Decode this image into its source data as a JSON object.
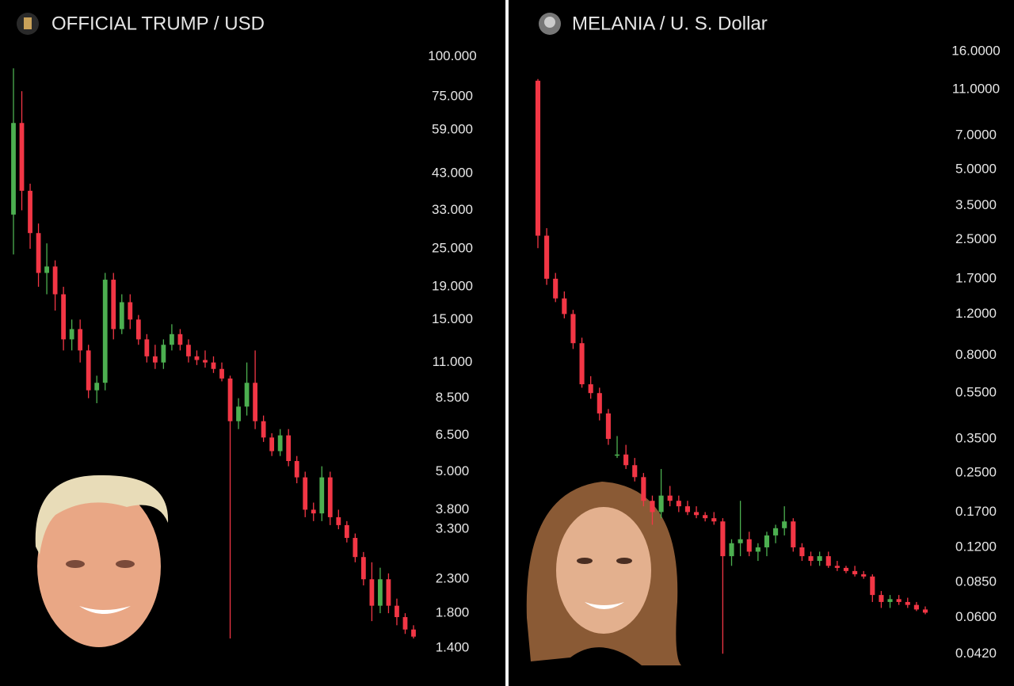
{
  "chart_data": [
    {
      "type": "candlestick",
      "title": "OFFICIAL TRUMP / USD",
      "log_scale": true,
      "grid": false,
      "up_color": "#4caf50",
      "down_color": "#f23645",
      "ylim": [
        1.2,
        110
      ],
      "yticks": [
        {
          "value": 100,
          "label": "100.000"
        },
        {
          "value": 75,
          "label": "75.000"
        },
        {
          "value": 59,
          "label": "59.000"
        },
        {
          "value": 43,
          "label": "43.000"
        },
        {
          "value": 33,
          "label": "33.000"
        },
        {
          "value": 25,
          "label": "25.000"
        },
        {
          "value": 19,
          "label": "19.000"
        },
        {
          "value": 15,
          "label": "15.000"
        },
        {
          "value": 11,
          "label": "11.000"
        },
        {
          "value": 8.5,
          "label": "8.500"
        },
        {
          "value": 6.5,
          "label": "6.500"
        },
        {
          "value": 5,
          "label": "5.000"
        },
        {
          "value": 3.8,
          "label": "3.800"
        },
        {
          "value": 3.3,
          "label": "3.300"
        },
        {
          "value": 2.3,
          "label": "2.300"
        },
        {
          "value": 1.8,
          "label": "1.800"
        },
        {
          "value": 1.4,
          "label": "1.400"
        }
      ],
      "open": [
        32,
        62,
        38,
        28,
        21,
        22,
        18,
        13,
        14,
        12,
        9,
        9.5,
        20,
        14,
        17,
        15,
        13,
        11.5,
        11,
        12.5,
        13.5,
        12.5,
        11.5,
        11.2,
        11,
        10.5,
        9.8,
        7.2,
        8,
        9.5,
        7.2,
        6.4,
        5.8,
        6.5,
        5.4,
        4.8,
        3.8,
        3.7,
        4.8,
        3.6,
        3.4,
        3.1,
        2.7,
        2.3,
        1.9,
        2.3,
        1.9,
        1.75,
        1.6
      ],
      "high": [
        92,
        78,
        40,
        30,
        26,
        23,
        19,
        15,
        15,
        12.5,
        10,
        21,
        21,
        18,
        18,
        15.5,
        13.5,
        12.5,
        13,
        14.5,
        14,
        13,
        12,
        12,
        11.5,
        11,
        10,
        8.5,
        11,
        12,
        7.5,
        6.6,
        6.8,
        6.8,
        5.6,
        5,
        4,
        5.2,
        5,
        3.8,
        3.5,
        3.2,
        2.8,
        2.6,
        2.5,
        2.4,
        2,
        1.8,
        1.65
      ],
      "low": [
        24,
        33,
        25,
        19,
        18,
        16,
        12,
        12,
        11,
        8.5,
        8.2,
        9,
        13,
        13.5,
        14,
        12.5,
        11,
        10.5,
        10.5,
        12,
        12,
        11,
        10.8,
        10.6,
        10.2,
        9.6,
        1.5,
        6.8,
        7.5,
        6.8,
        6.2,
        5.6,
        5.6,
        5.2,
        4.6,
        3.6,
        3.5,
        3.5,
        3.4,
        3.3,
        3,
        2.6,
        2.2,
        1.7,
        1.8,
        1.8,
        1.65,
        1.55,
        1.5
      ],
      "close": [
        62,
        38,
        28,
        21,
        22,
        18,
        13,
        14,
        12,
        9,
        9.5,
        20,
        14,
        17,
        15,
        13,
        11.5,
        11,
        12.5,
        13.5,
        12.5,
        11.5,
        11.2,
        11,
        10.5,
        9.8,
        7.2,
        8,
        9.5,
        7.2,
        6.4,
        5.8,
        6.5,
        5.4,
        4.8,
        3.8,
        3.7,
        4.8,
        3.6,
        3.4,
        3.1,
        2.7,
        2.3,
        1.9,
        2.3,
        1.9,
        1.75,
        1.6,
        1.52
      ]
    },
    {
      "type": "candlestick",
      "title": "MELANIA / U. S. Dollar",
      "log_scale": true,
      "grid": false,
      "up_color": "#4caf50",
      "down_color": "#f23645",
      "ylim": [
        0.036,
        18
      ],
      "yticks": [
        {
          "value": 16,
          "label": "16.0000"
        },
        {
          "value": 11,
          "label": "11.0000"
        },
        {
          "value": 7,
          "label": "7.0000"
        },
        {
          "value": 5,
          "label": "5.0000"
        },
        {
          "value": 3.5,
          "label": "3.5000"
        },
        {
          "value": 2.5,
          "label": "2.5000"
        },
        {
          "value": 1.7,
          "label": "1.7000"
        },
        {
          "value": 1.2,
          "label": "1.2000"
        },
        {
          "value": 0.8,
          "label": "0.8000"
        },
        {
          "value": 0.55,
          "label": "0.5500"
        },
        {
          "value": 0.35,
          "label": "0.3500"
        },
        {
          "value": 0.25,
          "label": "0.2500"
        },
        {
          "value": 0.17,
          "label": "0.1700"
        },
        {
          "value": 0.12,
          "label": "0.1200"
        },
        {
          "value": 0.085,
          "label": "0.0850"
        },
        {
          "value": 0.06,
          "label": "0.0600"
        },
        {
          "value": 0.042,
          "label": "0.0420"
        }
      ],
      "open": [
        12,
        2.6,
        1.7,
        1.4,
        1.2,
        0.9,
        0.6,
        0.55,
        0.45,
        0.3,
        0.3,
        0.27,
        0.24,
        0.19,
        0.17,
        0.2,
        0.19,
        0.18,
        0.17,
        0.165,
        0.16,
        0.155,
        0.11,
        0.125,
        0.13,
        0.115,
        0.12,
        0.135,
        0.145,
        0.155,
        0.12,
        0.11,
        0.105,
        0.11,
        0.1,
        0.098,
        0.095,
        0.092,
        0.09,
        0.075,
        0.07,
        0.072,
        0.07,
        0.068,
        0.065
      ],
      "high": [
        12.2,
        2.8,
        1.8,
        1.5,
        1.25,
        0.95,
        0.65,
        0.58,
        0.47,
        0.36,
        0.33,
        0.29,
        0.25,
        0.2,
        0.26,
        0.22,
        0.2,
        0.19,
        0.18,
        0.17,
        0.17,
        0.16,
        0.13,
        0.19,
        0.14,
        0.125,
        0.14,
        0.15,
        0.18,
        0.16,
        0.125,
        0.115,
        0.115,
        0.115,
        0.105,
        0.1,
        0.1,
        0.095,
        0.092,
        0.078,
        0.075,
        0.075,
        0.073,
        0.07,
        0.067
      ],
      "low": [
        2.3,
        1.6,
        1.35,
        1.15,
        0.85,
        0.58,
        0.52,
        0.42,
        0.33,
        0.29,
        0.26,
        0.23,
        0.18,
        0.15,
        0.16,
        0.18,
        0.17,
        0.165,
        0.16,
        0.155,
        0.15,
        0.042,
        0.1,
        0.11,
        0.11,
        0.105,
        0.11,
        0.125,
        0.135,
        0.115,
        0.105,
        0.1,
        0.1,
        0.098,
        0.095,
        0.093,
        0.09,
        0.088,
        0.07,
        0.066,
        0.066,
        0.068,
        0.066,
        0.064,
        0.062
      ],
      "close": [
        2.6,
        1.7,
        1.4,
        1.2,
        0.9,
        0.6,
        0.55,
        0.45,
        0.35,
        0.3,
        0.27,
        0.24,
        0.19,
        0.17,
        0.2,
        0.19,
        0.18,
        0.17,
        0.165,
        0.16,
        0.155,
        0.11,
        0.125,
        0.13,
        0.115,
        0.12,
        0.135,
        0.145,
        0.155,
        0.12,
        0.11,
        0.105,
        0.11,
        0.1,
        0.098,
        0.095,
        0.092,
        0.09,
        0.075,
        0.07,
        0.072,
        0.07,
        0.068,
        0.065,
        0.063
      ]
    }
  ]
}
